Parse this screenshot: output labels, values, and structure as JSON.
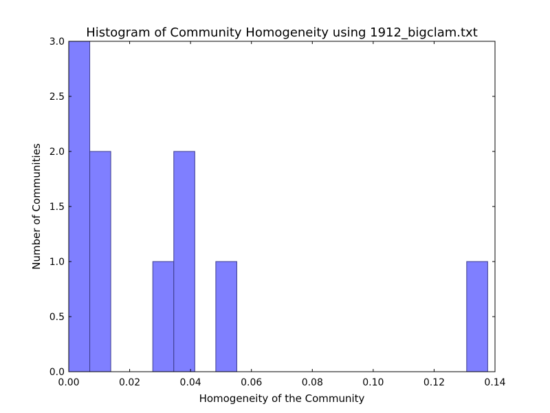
{
  "chart_data": {
    "type": "bar",
    "title": "Histogram of Community Homogeneity using 1912_bigclam.txt",
    "xlabel": "Homogeneity of the Community",
    "ylabel": "Number of Communities",
    "xlim": [
      0.0,
      0.14
    ],
    "ylim": [
      0.0,
      3.0
    ],
    "x_ticks": [
      "0.00",
      "0.02",
      "0.04",
      "0.06",
      "0.08",
      "0.10",
      "0.12",
      "0.14"
    ],
    "y_ticks": [
      "0.0",
      "0.5",
      "1.0",
      "1.5",
      "2.0",
      "2.5",
      "3.0"
    ],
    "bins": [
      {
        "x0": 0.0,
        "x1": 0.0069,
        "count": 3
      },
      {
        "x0": 0.0069,
        "x1": 0.0138,
        "count": 2
      },
      {
        "x0": 0.0276,
        "x1": 0.0345,
        "count": 1
      },
      {
        "x0": 0.0345,
        "x1": 0.0414,
        "count": 2
      },
      {
        "x0": 0.0483,
        "x1": 0.0552,
        "count": 1
      },
      {
        "x0": 0.1307,
        "x1": 0.1376,
        "count": 1
      }
    ],
    "bar_color": "#7f7fff",
    "grid": false
  }
}
